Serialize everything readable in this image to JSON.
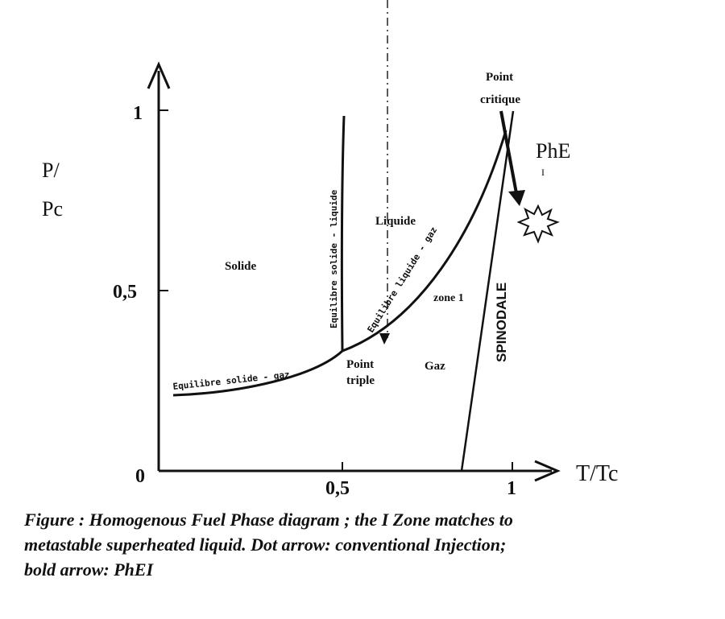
{
  "axes": {
    "y_label_line1": "P/",
    "y_label_line2": "Pc",
    "x_label": "T/Tc",
    "y_ticks": [
      "1",
      "0,5"
    ],
    "origin": "0",
    "x_ticks": [
      "0,5",
      "1"
    ]
  },
  "regions": {
    "solid": "Solide",
    "liquid": "Liquide",
    "gas": "Gaz",
    "zone1": "zone 1"
  },
  "curves": {
    "solid_gas": "Equilibre solide - gaz",
    "solid_liquid": "Equilibre solide - liquide",
    "liquid_gas": "Equilibre liquide - gaz",
    "spinodal": "SPINODALE"
  },
  "points": {
    "triple_line1": "Point",
    "triple_line2": "triple",
    "critical_line1": "Point",
    "critical_line2": "critique"
  },
  "annotations": {
    "phe_line1": "PhE",
    "phe_line2": "I"
  },
  "caption": {
    "line1": "Figure    : Homogenous  Fuel Phase diagram ; the I Zone matches to",
    "line2": "metastable superheated liquid. Dot arrow: conventional Injection;",
    "line3": "bold arrow: PhEI"
  }
}
